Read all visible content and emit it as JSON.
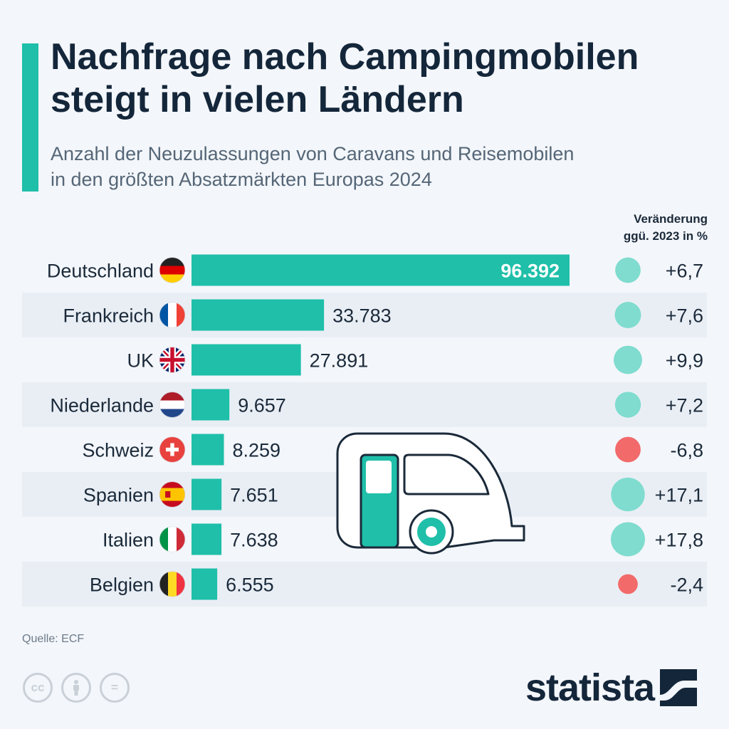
{
  "header": {
    "title_line1": "Nachfrage nach Campingmobilen",
    "title_line2": "steigt in vielen Ländern",
    "subtitle_line1": "Anzahl der Neuzulassungen von Caravans und Reisemobilen",
    "subtitle_line2": "in den größten Absatzmärkten Europas 2024"
  },
  "change_header": {
    "line1": "Veränderung",
    "line2": "ggü. 2023 in %"
  },
  "colors": {
    "bar": "#1fbfa9",
    "positive": "#7fdccf",
    "negative": "#f26a6a",
    "row_alt": "#e9eef5"
  },
  "chart_data": {
    "type": "bar",
    "orientation": "horizontal",
    "categories": [
      "Deutschland",
      "Frankreich",
      "UK",
      "Niederlande",
      "Schweiz",
      "Spanien",
      "Italien",
      "Belgien"
    ],
    "values": [
      96392,
      33783,
      27891,
      9657,
      8259,
      7651,
      7638,
      6555
    ],
    "value_labels": [
      "96.392",
      "33.783",
      "27.891",
      "9.657",
      "8.259",
      "7.651",
      "7.638",
      "6.555"
    ],
    "change_pct": [
      6.7,
      7.6,
      9.9,
      7.2,
      -6.8,
      17.1,
      17.8,
      -2.4
    ],
    "change_labels": [
      "+6,7",
      "+7,6",
      "+9,9",
      "+7,2",
      "-6,8",
      "+17,1",
      "+17,8",
      "-2,4"
    ],
    "flags": [
      "germany-flag-icon",
      "france-flag-icon",
      "uk-flag-icon",
      "netherlands-flag-icon",
      "switzerland-flag-icon",
      "spain-flag-icon",
      "italy-flag-icon",
      "belgium-flag-icon"
    ],
    "xlim": [
      0,
      96392
    ]
  },
  "illustration": "caravan-icon",
  "footer": {
    "source": "Quelle: ECF",
    "cc_icons": [
      "cc-icon",
      "attribution-icon",
      "no-derivatives-icon"
    ],
    "cc_labels": [
      "cc",
      "",
      "="
    ],
    "brand": "statista"
  }
}
